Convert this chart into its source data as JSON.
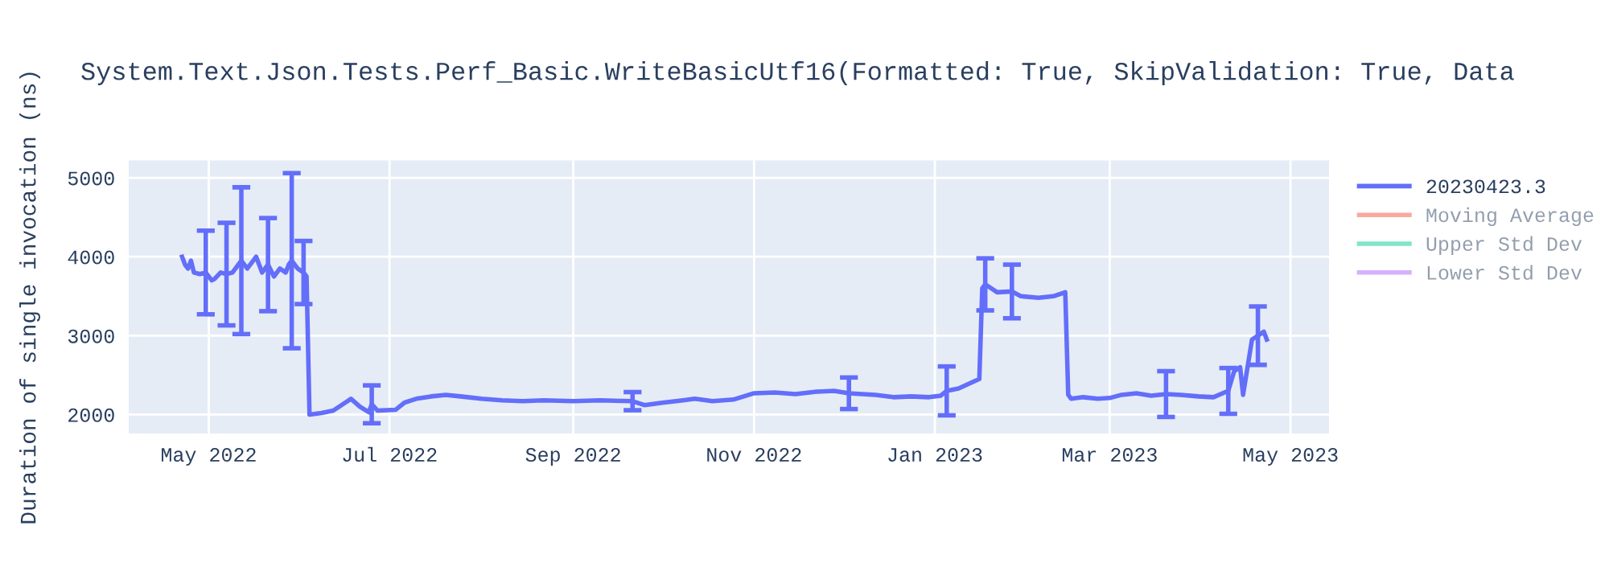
{
  "chart_data": {
    "type": "line",
    "title": "System.Text.Json.Tests.Perf_Basic.WriteBasicUtf16(Formatted: True, SkipValidation: True, Data",
    "ylabel": "Duration of single invocation (ns)",
    "xlim": [
      "2022-04-04",
      "2023-05-14"
    ],
    "xticks": [
      {
        "value": "2022-05-01",
        "label": "May 2022"
      },
      {
        "value": "2022-07-01",
        "label": "Jul 2022"
      },
      {
        "value": "2022-09-01",
        "label": "Sep 2022"
      },
      {
        "value": "2022-11-01",
        "label": "Nov 2022"
      },
      {
        "value": "2023-01-01",
        "label": "Jan 2023"
      },
      {
        "value": "2023-03-01",
        "label": "Mar 2023"
      },
      {
        "value": "2023-05-01",
        "label": "May 2023"
      }
    ],
    "ylim": [
      1760,
      5220
    ],
    "yticks": [
      2000,
      3000,
      4000,
      5000
    ],
    "grid": true,
    "legend": "top right",
    "series": [
      {
        "name": "20230423.3",
        "color": "#636efa",
        "x": [
          "2022-04-22",
          "2022-04-23",
          "2022-04-24",
          "2022-04-25",
          "2022-04-26",
          "2022-04-28",
          "2022-04-30",
          "2022-05-02",
          "2022-05-03",
          "2022-05-05",
          "2022-05-07",
          "2022-05-09",
          "2022-05-11",
          "2022-05-12",
          "2022-05-14",
          "2022-05-16",
          "2022-05-17",
          "2022-05-19",
          "2022-05-21",
          "2022-05-23",
          "2022-05-25",
          "2022-05-27",
          "2022-05-28",
          "2022-05-29",
          "2022-05-31",
          "2022-06-02",
          "2022-06-03",
          "2022-06-04",
          "2022-06-08",
          "2022-06-12",
          "2022-06-16",
          "2022-06-18",
          "2022-06-21",
          "2022-06-24",
          "2022-06-25",
          "2022-06-27",
          "2022-07-03",
          "2022-07-06",
          "2022-07-10",
          "2022-07-15",
          "2022-07-20",
          "2022-07-25",
          "2022-08-01",
          "2022-08-08",
          "2022-08-15",
          "2022-08-22",
          "2022-09-01",
          "2022-09-10",
          "2022-09-21",
          "2022-09-25",
          "2022-10-01",
          "2022-10-08",
          "2022-10-12",
          "2022-10-18",
          "2022-10-25",
          "2022-11-01",
          "2022-11-08",
          "2022-11-15",
          "2022-11-22",
          "2022-11-28",
          "2022-12-03",
          "2022-12-12",
          "2022-12-18",
          "2022-12-24",
          "2022-12-30",
          "2023-01-03",
          "2023-01-05",
          "2023-01-09",
          "2023-01-13",
          "2023-01-16",
          "2023-01-17",
          "2023-01-18",
          "2023-01-22",
          "2023-01-27",
          "2023-01-30",
          "2023-02-05",
          "2023-02-10",
          "2023-02-14",
          "2023-02-15",
          "2023-02-16",
          "2023-02-20",
          "2023-02-25",
          "2023-03-01",
          "2023-03-05",
          "2023-03-10",
          "2023-03-15",
          "2023-03-20",
          "2023-03-25",
          "2023-03-31",
          "2023-04-05",
          "2023-04-10",
          "2023-04-12",
          "2023-04-14",
          "2023-04-15",
          "2023-04-18",
          "2023-04-20",
          "2023-04-22",
          "2023-04-23"
        ],
        "values": [
          4000,
          3900,
          3850,
          3950,
          3800,
          3780,
          3800,
          3700,
          3720,
          3800,
          3780,
          3800,
          3900,
          3950,
          3850,
          3950,
          4000,
          3800,
          3900,
          3750,
          3850,
          3800,
          3900,
          3950,
          3850,
          3800,
          3750,
          2000,
          2020,
          2050,
          2150,
          2200,
          2100,
          2030,
          2130,
          2050,
          2060,
          2150,
          2200,
          2230,
          2250,
          2230,
          2200,
          2180,
          2170,
          2180,
          2170,
          2180,
          2170,
          2120,
          2150,
          2180,
          2200,
          2170,
          2190,
          2270,
          2280,
          2260,
          2290,
          2300,
          2270,
          2250,
          2220,
          2230,
          2220,
          2240,
          2300,
          2330,
          2400,
          2450,
          3600,
          3650,
          3550,
          3560,
          3500,
          3480,
          3500,
          3550,
          2250,
          2200,
          2220,
          2200,
          2210,
          2250,
          2270,
          2240,
          2260,
          2250,
          2230,
          2220,
          2300,
          2550,
          2600,
          2250,
          2950,
          3000,
          3050,
          2950
        ],
        "errors": [
          null,
          null,
          null,
          null,
          null,
          null,
          530,
          null,
          null,
          null,
          650,
          null,
          null,
          930,
          null,
          null,
          null,
          null,
          590,
          null,
          null,
          null,
          null,
          1110,
          null,
          400,
          null,
          null,
          null,
          null,
          null,
          null,
          null,
          null,
          240,
          null,
          null,
          null,
          null,
          null,
          null,
          null,
          null,
          null,
          null,
          null,
          null,
          null,
          115,
          null,
          null,
          null,
          null,
          null,
          null,
          null,
          null,
          null,
          null,
          null,
          200,
          null,
          null,
          null,
          null,
          null,
          310,
          null,
          null,
          null,
          null,
          330,
          null,
          340,
          null,
          null,
          null,
          null,
          null,
          null,
          null,
          null,
          null,
          null,
          null,
          null,
          290,
          null,
          null,
          null,
          290,
          null,
          null,
          null,
          null,
          370,
          null,
          null
        ]
      },
      {
        "name": "Moving Average",
        "color": "#ef553b"
      },
      {
        "name": "Upper Std Dev",
        "color": "#00cc96"
      },
      {
        "name": "Lower Std Dev",
        "color": "#ab63fa"
      }
    ]
  }
}
